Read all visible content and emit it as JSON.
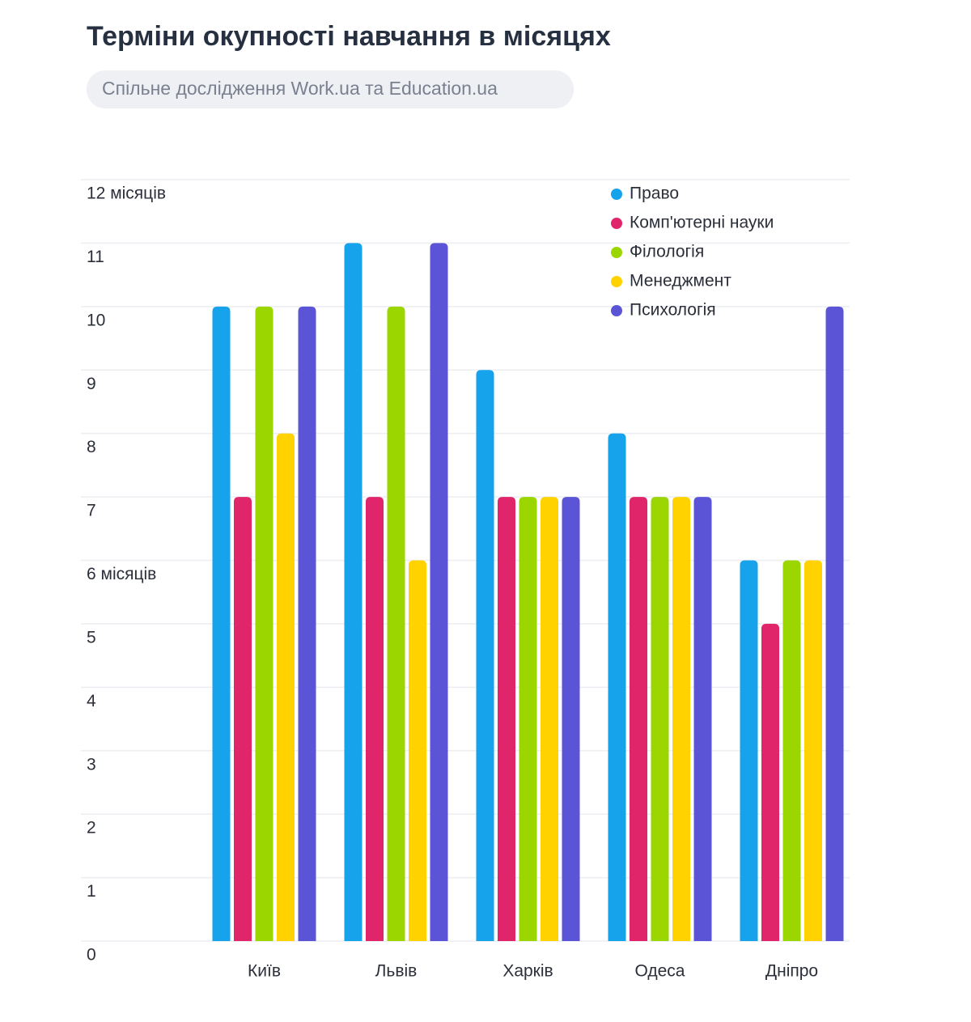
{
  "chart_data": {
    "type": "bar",
    "title": "Терміни окупності навчання в місяцях",
    "subtitle": "Спільне дослідження Work.ua та Education.ua",
    "categories": [
      "Київ",
      "Львів",
      "Харків",
      "Одеса",
      "Дніпро"
    ],
    "series": [
      {
        "name": "Право",
        "color": "#17a3ec",
        "values": [
          10,
          11,
          9,
          8,
          6
        ]
      },
      {
        "name": "Комп'ютерні науки",
        "color": "#e1256b",
        "values": [
          7,
          7,
          7,
          7,
          5
        ]
      },
      {
        "name": "Філологія",
        "color": "#9bd600",
        "values": [
          10,
          10,
          7,
          7,
          6
        ]
      },
      {
        "name": "Менеджмент",
        "color": "#ffd200",
        "values": [
          8,
          6,
          7,
          7,
          6
        ]
      },
      {
        "name": "Психологія",
        "color": "#5b54d6",
        "values": [
          10,
          11,
          7,
          7,
          10
        ]
      }
    ],
    "ylim": [
      0,
      12
    ],
    "yticks": [
      0,
      1,
      2,
      3,
      4,
      5,
      {
        "value": 6,
        "label": "6 місяців"
      },
      7,
      8,
      9,
      10,
      11,
      {
        "value": 12,
        "label": "12 місяців"
      }
    ],
    "grid": true,
    "legend": "top-right"
  }
}
